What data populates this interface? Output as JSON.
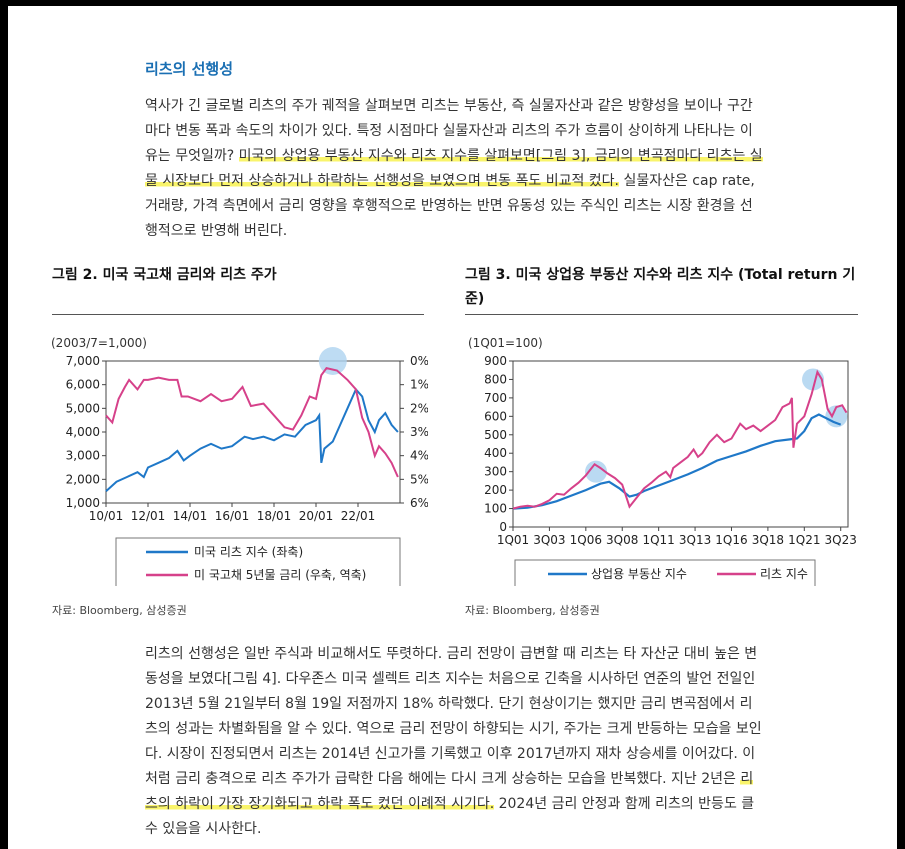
{
  "section_title": "리츠의 선행성",
  "para1": {
    "before": "역사가 긴 글로벌 리츠의 주가 궤적을 살펴보면 리츠는 부동산, 즉 실물자산과 같은 방향성을 보이나 구간마다 변동 폭과 속도의 차이가 있다. 특정 시점마다 실물자산과 리츠의 주가 흐름이 상이하게 나타나는 이유는 무엇일까? ",
    "highlight": "미국의 상업용 부동산 지수와 리츠 지수를 살펴보면[그림 3], 금리의 변곡점마다 리츠는 실물 시장보다 먼저 상승하거나 하락하는 선행성을 보였으며 변동 폭도 비교적 컸다.",
    "after": " 실물자산은 cap rate, 거래량, 가격 측면에서 금리 영향을 후행적으로 반영하는 반면 유동성 있는 주식인 리츠는 시장 환경을 선행적으로 반영해 버린다."
  },
  "figure2": {
    "title": "그림 2. 미국 국고채 금리와 리츠 주가",
    "unit": "(2003/7=1,000)",
    "source": "자료: Bloomberg, 삼성증권",
    "legend": [
      "미국 리츠 지수 (좌축)",
      "미 국고채 5년물 금리 (우축, 역축)"
    ]
  },
  "figure3": {
    "title": "그림 3. 미국 상업용 부동산 지수와 리츠 지수 (Total return 기준)",
    "unit": "(1Q01=100)",
    "source": "자료: Bloomberg, 삼성증권",
    "legend": [
      "상업용 부동산 지수",
      "리츠 지수"
    ]
  },
  "para2": {
    "before": "리츠의 선행성은 일반 주식과 비교해서도 뚜렷하다. 금리 전망이 급변할 때 리츠는 타 자산군 대비 높은 변동성을 보였다[그림 4]. 다우존스 미국 셀렉트 리츠 지수는 처음으로 긴축을 시사하던 연준의 발언 전일인 2013년 5월 21일부터 8월 19일 저점까지 18% 하락했다. 단기 현상이기는 했지만 금리 변곡점에서 리츠의 성과는 차별화됨을 알 수 있다. 역으로 금리 전망이 하향되는 시기, 주가는 크게 반등하는 모습을 보인다. 시장이 진정되면서 리츠는 2014년 신고가를 기록했고 이후 2017년까지 재차 상승세를 이어갔다. 이처럼 금리 충격으로 리츠 주가가 급락한 다음 해에는 다시 크게 상승하는 모습을 반복했다. 지난 2년은 ",
    "highlight": "리츠의 하락이 가장 장기화되고 하락 폭도 컸던 이례적 시기다.",
    "after": " 2024년 금리 안정과 함께 리츠의 반등도 클 수 있음을 시사한다."
  },
  "colors": {
    "reits": "#1f78c8",
    "rates": "#d6418a",
    "bubble": "#aed3f0",
    "title": "#1a6fb3",
    "highlight": "#f9f46b"
  },
  "chart_data": [
    {
      "type": "line",
      "x": [
        "10/01",
        "12/01",
        "14/01",
        "16/01",
        "18/01",
        "20/01",
        "22/01"
      ],
      "ylim": [
        1000,
        7000
      ],
      "y_ticks": [
        "1,000",
        "2,000",
        "3,000",
        "4,000",
        "5,000",
        "6,000",
        "7,000"
      ],
      "y2lim": [
        0,
        6
      ],
      "y2_inverted": true,
      "y2_ticks": [
        "0%",
        "1%",
        "2%",
        "3%",
        "4%",
        "5%",
        "6%"
      ],
      "series": [
        {
          "name": "미국 리츠 지수 (좌축)",
          "axis": "left",
          "points": [
            [
              2010.0,
              1500
            ],
            [
              2010.5,
              1900
            ],
            [
              2011.0,
              2100
            ],
            [
              2011.5,
              2300
            ],
            [
              2011.8,
              2100
            ],
            [
              2012.0,
              2500
            ],
            [
              2012.5,
              2700
            ],
            [
              2013.0,
              2900
            ],
            [
              2013.4,
              3200
            ],
            [
              2013.7,
              2800
            ],
            [
              2014.0,
              3000
            ],
            [
              2014.5,
              3300
            ],
            [
              2015.0,
              3500
            ],
            [
              2015.5,
              3300
            ],
            [
              2016.0,
              3400
            ],
            [
              2016.6,
              3800
            ],
            [
              2017.0,
              3700
            ],
            [
              2017.5,
              3800
            ],
            [
              2018.0,
              3650
            ],
            [
              2018.5,
              3900
            ],
            [
              2019.0,
              3800
            ],
            [
              2019.5,
              4300
            ],
            [
              2020.0,
              4500
            ],
            [
              2020.15,
              4700
            ],
            [
              2020.25,
              2700
            ],
            [
              2020.4,
              3300
            ],
            [
              2020.8,
              3600
            ],
            [
              2021.0,
              4000
            ],
            [
              2021.5,
              5000
            ],
            [
              2021.9,
              5800
            ],
            [
              2022.2,
              5500
            ],
            [
              2022.5,
              4500
            ],
            [
              2022.8,
              4000
            ],
            [
              2023.0,
              4500
            ],
            [
              2023.3,
              4800
            ],
            [
              2023.6,
              4300
            ],
            [
              2023.9,
              4000
            ]
          ]
        },
        {
          "name": "미 국고채 5년물 금리 (우축, 역축)",
          "axis": "right",
          "points": [
            [
              2010.0,
              2.3
            ],
            [
              2010.3,
              2.6
            ],
            [
              2010.6,
              1.6
            ],
            [
              2010.9,
              1.1
            ],
            [
              2011.1,
              0.8
            ],
            [
              2011.5,
              1.2
            ],
            [
              2011.8,
              0.8
            ],
            [
              2012.0,
              0.8
            ],
            [
              2012.5,
              0.7
            ],
            [
              2013.0,
              0.8
            ],
            [
              2013.4,
              0.8
            ],
            [
              2013.6,
              1.5
            ],
            [
              2013.9,
              1.5
            ],
            [
              2014.5,
              1.7
            ],
            [
              2015.0,
              1.4
            ],
            [
              2015.5,
              1.7
            ],
            [
              2016.0,
              1.6
            ],
            [
              2016.5,
              1.1
            ],
            [
              2016.9,
              1.9
            ],
            [
              2017.5,
              1.8
            ],
            [
              2018.0,
              2.3
            ],
            [
              2018.5,
              2.8
            ],
            [
              2018.9,
              2.9
            ],
            [
              2019.3,
              2.3
            ],
            [
              2019.7,
              1.5
            ],
            [
              2020.0,
              1.6
            ],
            [
              2020.25,
              0.6
            ],
            [
              2020.5,
              0.3
            ],
            [
              2021.0,
              0.4
            ],
            [
              2021.5,
              0.8
            ],
            [
              2021.9,
              1.2
            ],
            [
              2022.2,
              2.4
            ],
            [
              2022.5,
              3.0
            ],
            [
              2022.8,
              4.0
            ],
            [
              2023.0,
              3.6
            ],
            [
              2023.3,
              3.9
            ],
            [
              2023.6,
              4.3
            ],
            [
              2023.9,
              4.9
            ]
          ]
        }
      ]
    },
    {
      "type": "line",
      "x": [
        "1Q01",
        "3Q03",
        "1Q06",
        "3Q08",
        "1Q11",
        "3Q13",
        "1Q16",
        "3Q18",
        "1Q21",
        "3Q23"
      ],
      "ylim": [
        0,
        900
      ],
      "y_ticks": [
        "0",
        "100",
        "200",
        "300",
        "400",
        "500",
        "600",
        "700",
        "800",
        "900"
      ],
      "series": [
        {
          "name": "상업용 부동산 지수",
          "points": [
            [
              2001.0,
              100
            ],
            [
              2002.0,
              105
            ],
            [
              2003.0,
              118
            ],
            [
              2004.0,
              140
            ],
            [
              2005.0,
              170
            ],
            [
              2006.0,
              200
            ],
            [
              2007.0,
              235
            ],
            [
              2007.6,
              245
            ],
            [
              2008.3,
              210
            ],
            [
              2009.0,
              165
            ],
            [
              2009.5,
              175
            ],
            [
              2010.0,
              195
            ],
            [
              2011.0,
              225
            ],
            [
              2012.0,
              255
            ],
            [
              2013.0,
              285
            ],
            [
              2014.0,
              320
            ],
            [
              2015.0,
              360
            ],
            [
              2016.0,
              385
            ],
            [
              2017.0,
              410
            ],
            [
              2018.0,
              440
            ],
            [
              2019.0,
              465
            ],
            [
              2020.0,
              475
            ],
            [
              2020.5,
              480
            ],
            [
              2021.0,
              520
            ],
            [
              2021.5,
              590
            ],
            [
              2022.0,
              610
            ],
            [
              2022.5,
              590
            ],
            [
              2023.0,
              570
            ],
            [
              2023.5,
              555
            ]
          ]
        },
        {
          "name": "리츠 지수",
          "points": [
            [
              2001.0,
              100
            ],
            [
              2001.5,
              110
            ],
            [
              2002.0,
              115
            ],
            [
              2002.5,
              110
            ],
            [
              2003.0,
              125
            ],
            [
              2003.5,
              145
            ],
            [
              2004.0,
              180
            ],
            [
              2004.5,
              175
            ],
            [
              2005.0,
              210
            ],
            [
              2005.5,
              240
            ],
            [
              2006.0,
              280
            ],
            [
              2006.6,
              340
            ],
            [
              2007.0,
              320
            ],
            [
              2007.5,
              290
            ],
            [
              2008.0,
              265
            ],
            [
              2008.5,
              230
            ],
            [
              2009.0,
              110
            ],
            [
              2009.5,
              160
            ],
            [
              2010.0,
              210
            ],
            [
              2010.5,
              240
            ],
            [
              2011.0,
              275
            ],
            [
              2011.5,
              300
            ],
            [
              2011.8,
              270
            ],
            [
              2012.0,
              320
            ],
            [
              2012.5,
              350
            ],
            [
              2013.0,
              380
            ],
            [
              2013.4,
              420
            ],
            [
              2013.7,
              380
            ],
            [
              2014.0,
              400
            ],
            [
              2014.5,
              460
            ],
            [
              2015.0,
              500
            ],
            [
              2015.5,
              460
            ],
            [
              2016.0,
              480
            ],
            [
              2016.6,
              560
            ],
            [
              2017.0,
              530
            ],
            [
              2017.5,
              550
            ],
            [
              2018.0,
              520
            ],
            [
              2018.5,
              550
            ],
            [
              2019.0,
              580
            ],
            [
              2019.5,
              650
            ],
            [
              2020.0,
              670
            ],
            [
              2020.15,
              700
            ],
            [
              2020.25,
              430
            ],
            [
              2020.5,
              560
            ],
            [
              2021.0,
              600
            ],
            [
              2021.5,
              720
            ],
            [
              2021.9,
              840
            ],
            [
              2022.2,
              800
            ],
            [
              2022.6,
              640
            ],
            [
              2022.9,
              600
            ],
            [
              2023.2,
              650
            ],
            [
              2023.6,
              660
            ],
            [
              2023.9,
              620
            ]
          ]
        }
      ]
    }
  ]
}
